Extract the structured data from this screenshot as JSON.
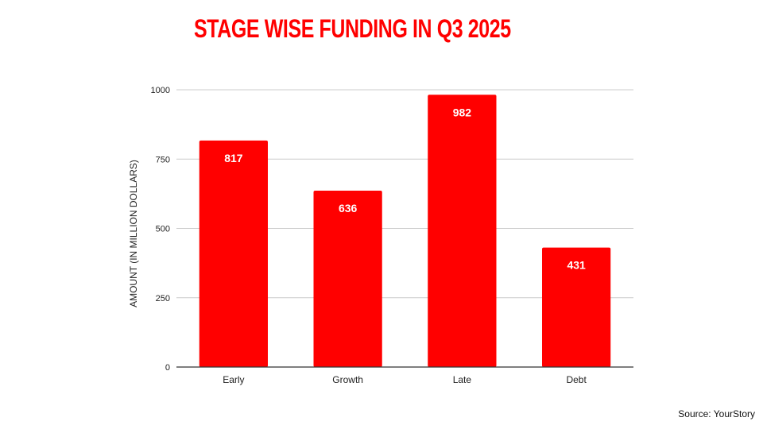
{
  "title": "STAGE WISE FUNDING IN Q3 2025",
  "source": "Source: YourStory",
  "colors": {
    "bar": "#ff0000",
    "title": "#ff0000",
    "grid": "#cccccc",
    "axis": "#333333",
    "label": "#ffffff"
  },
  "chart_data": {
    "type": "bar",
    "categories": [
      "Early",
      "Growth",
      "Late",
      "Debt"
    ],
    "values": [
      817,
      636,
      982,
      431
    ],
    "ylabel": "AMOUNT (IN MILLION DOLLARS)",
    "xlabel": "",
    "ylim": [
      0,
      1000
    ],
    "yticks": [
      0,
      250,
      500,
      750,
      1000
    ],
    "grid": true,
    "data_labels": [
      "817",
      "636",
      "982",
      "431"
    ]
  }
}
